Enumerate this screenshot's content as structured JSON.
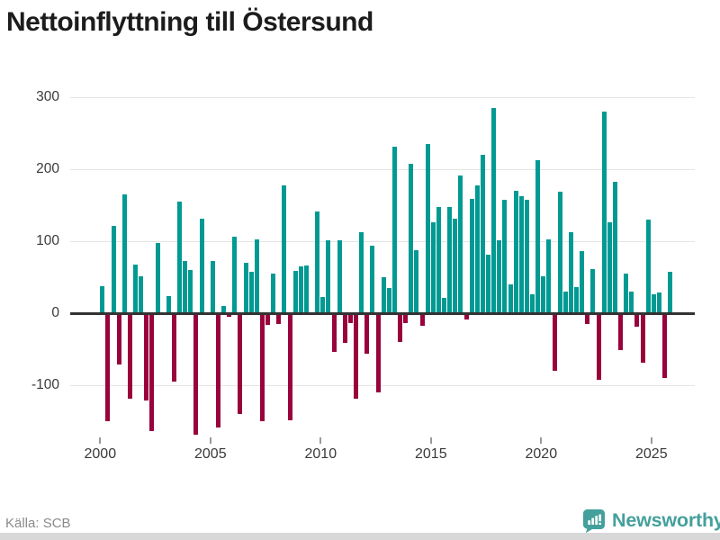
{
  "page": {
    "title": "Nettoinflyttning till Östersund",
    "source": "Källa: SCB",
    "brand_name": "Newsworthy"
  },
  "colors": {
    "positive_bar": "#009a93",
    "negative_bar": "#99023c",
    "zero_line": "#333333",
    "gridline": "#e4e4e4",
    "axis_text": "#3a3a3a",
    "title_text": "#1c1c1c",
    "source_text": "#8a8a8a",
    "brand_teal": "#44a09c",
    "bottom_strip": "#d8d8d8"
  },
  "chart_data": {
    "type": "bar",
    "title": "Nettoinflyttning till Östersund",
    "xlabel": "",
    "ylabel": "",
    "x_start": "2000-Q1",
    "x_end": "2025-Q4",
    "periods_per_year": 4,
    "start_year": 2000,
    "x_tick_years": [
      2000,
      2005,
      2010,
      2015,
      2020,
      2025
    ],
    "y_ticks": [
      {
        "label": "300",
        "value": 300
      },
      {
        "label": "200",
        "value": 200
      },
      {
        "label": "100",
        "value": 100
      },
      {
        "label": "0",
        "value": 0
      },
      {
        "label": "-100",
        "value": -100
      }
    ],
    "ylim": [
      -180,
      310
    ],
    "grid": true,
    "legend_position": "none",
    "series": [
      {
        "name": "Nettoinflyttning per kvartal",
        "values": [
          38,
          -149,
          122,
          -71,
          165,
          -118,
          68,
          51,
          -121,
          -163,
          98,
          0,
          24,
          -94,
          155,
          73,
          60,
          -168,
          132,
          0,
          73,
          -158,
          10,
          -5,
          107,
          -139,
          70,
          58,
          103,
          -150,
          -16,
          55,
          -15,
          178,
          -148,
          59,
          65,
          66,
          0,
          141,
          23,
          101,
          -53,
          101,
          -41,
          -13,
          -118,
          113,
          -56,
          94,
          -110,
          50,
          35,
          232,
          -39,
          -13,
          208,
          88,
          -17,
          235,
          127,
          148,
          21,
          148,
          132,
          192,
          -8,
          159,
          178,
          220,
          81,
          285,
          101,
          158,
          40,
          170,
          163,
          158,
          27,
          213,
          51,
          103,
          -80,
          169,
          30,
          113,
          37,
          87,
          -15,
          62,
          -92,
          280,
          127,
          183,
          -51,
          55,
          30,
          -18,
          -68,
          130,
          26,
          29,
          -89,
          58
        ]
      }
    ]
  }
}
